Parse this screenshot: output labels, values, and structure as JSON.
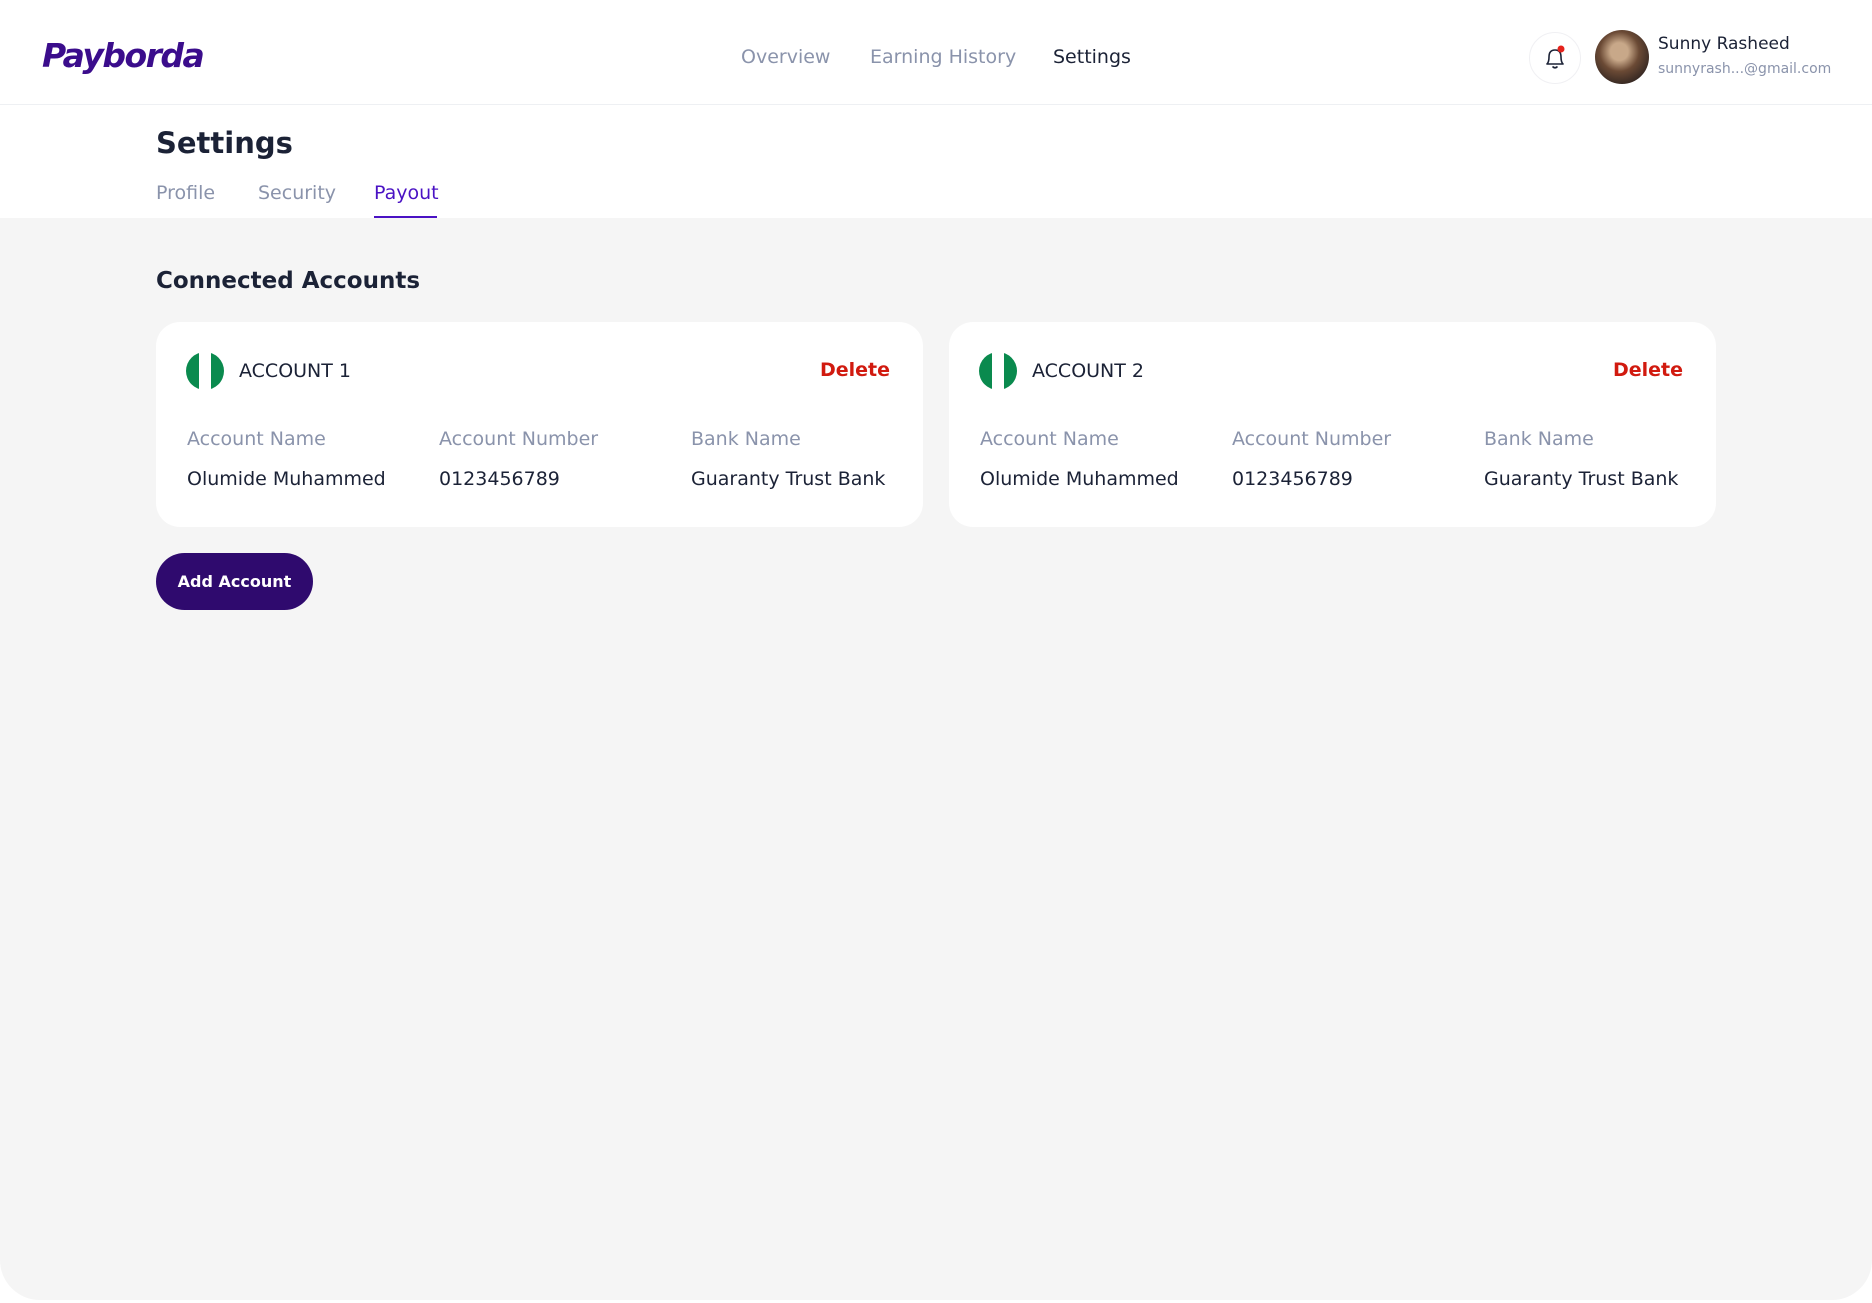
{
  "header": {
    "logo": "Payborda",
    "nav": [
      "Overview",
      "Earning History",
      "Settings"
    ],
    "user_name": "Sunny Rasheed",
    "user_email": "sunnyrash...@gmail.com"
  },
  "settings": {
    "title": "Settings",
    "tabs": [
      "Profile",
      "Security",
      "Payout"
    ]
  },
  "connected": {
    "title": "Connected Accounts",
    "field_labels": [
      "Account Name",
      "Account Number",
      "Bank Name"
    ],
    "accounts": [
      {
        "title": "ACCOUNT 1",
        "delete": "Delete",
        "values": [
          "Olumide Muhammed",
          "0123456789",
          "Guaranty Trust Bank"
        ]
      },
      {
        "title": "ACCOUNT 2",
        "delete": "Delete",
        "values": [
          "Olumide Muhammed",
          "0123456789",
          "Guaranty Trust Bank"
        ]
      }
    ],
    "add_button": "Add Account"
  }
}
